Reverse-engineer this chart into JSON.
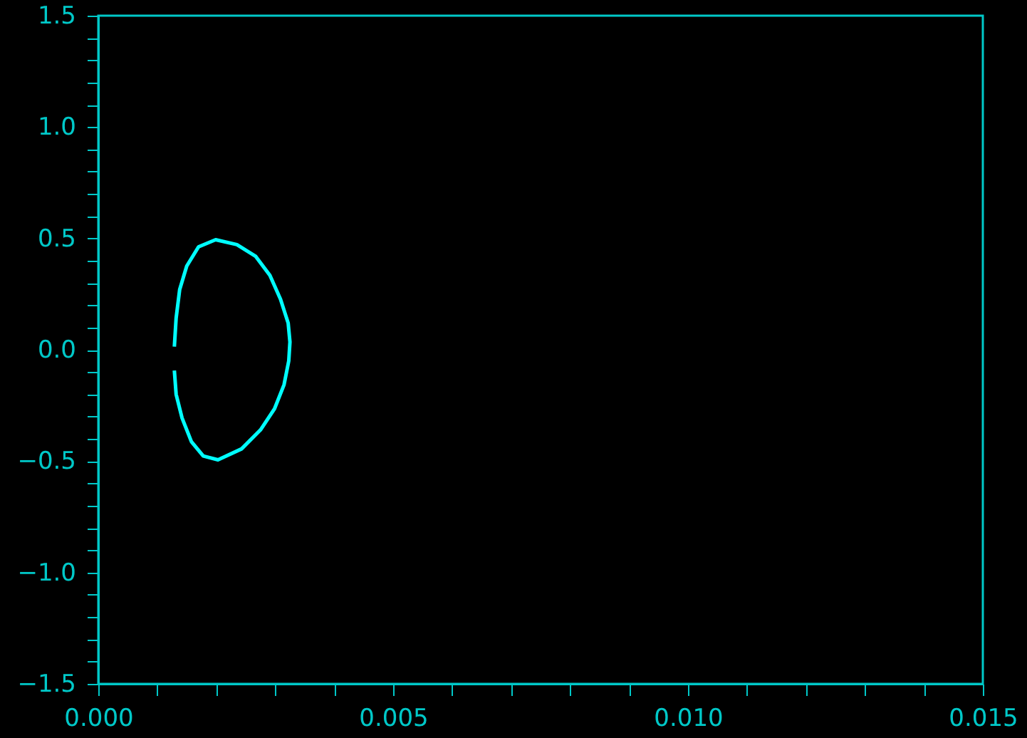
{
  "chart_data": {
    "type": "line",
    "x": [
      0.00129,
      0.00132,
      0.00138,
      0.0015,
      0.0017,
      0.00199,
      0.00235,
      0.00267,
      0.00291,
      0.00309,
      0.00322,
      0.00325,
      0.00323,
      0.00315,
      0.00299,
      0.00275,
      0.00243,
      0.00203,
      0.00178,
      0.00158,
      0.00142,
      0.00132,
      0.00129
    ],
    "series": [
      {
        "color": "#00ffff",
        "values": [
          0.014,
          0.142,
          0.27,
          0.376,
          0.462,
          0.494,
          0.472,
          0.419,
          0.334,
          0.227,
          0.12,
          0.035,
          -0.05,
          -0.157,
          -0.264,
          -0.36,
          -0.445,
          -0.494,
          -0.477,
          -0.413,
          -0.306,
          -0.2,
          -0.093
        ]
      }
    ],
    "xlim": [
      0,
      0.015
    ],
    "xticks": [
      {
        "value": 0,
        "label": "0.000"
      },
      {
        "value": 0.001,
        "label": null
      },
      {
        "value": 0.002,
        "label": null
      },
      {
        "value": 0.003,
        "label": null
      },
      {
        "value": 0.004,
        "label": null
      },
      {
        "value": 0.005,
        "label": "0.005"
      },
      {
        "value": 0.006,
        "label": null
      },
      {
        "value": 0.007,
        "label": null
      },
      {
        "value": 0.008,
        "label": null
      },
      {
        "value": 0.009,
        "label": null
      },
      {
        "value": 0.01,
        "label": "0.010"
      },
      {
        "value": 0.011,
        "label": null
      },
      {
        "value": 0.012,
        "label": null
      },
      {
        "value": 0.013,
        "label": null
      },
      {
        "value": 0.014,
        "label": null
      },
      {
        "value": 0.015,
        "label": "0.015"
      }
    ],
    "ylim": [
      -1.5,
      1.5
    ],
    "yticks": [
      {
        "value": -1.5,
        "label": "−1.5"
      },
      {
        "value": -1.4,
        "label": null
      },
      {
        "value": -1.3,
        "label": null
      },
      {
        "value": -1.2,
        "label": null
      },
      {
        "value": -1.1,
        "label": null
      },
      {
        "value": -1.0,
        "label": "−1.0"
      },
      {
        "value": -0.9,
        "label": null
      },
      {
        "value": -0.8,
        "label": null
      },
      {
        "value": -0.7,
        "label": null
      },
      {
        "value": -0.6,
        "label": null
      },
      {
        "value": -0.5,
        "label": "−0.5"
      },
      {
        "value": -0.4,
        "label": null
      },
      {
        "value": -0.3,
        "label": null
      },
      {
        "value": -0.2,
        "label": null
      },
      {
        "value": -0.1,
        "label": null
      },
      {
        "value": 0,
        "label": "0.0"
      },
      {
        "value": 0.1,
        "label": null
      },
      {
        "value": 0.2,
        "label": null
      },
      {
        "value": 0.3,
        "label": null
      },
      {
        "value": 0.4,
        "label": null
      },
      {
        "value": 0.5,
        "label": "0.5"
      },
      {
        "value": 0.6,
        "label": null
      },
      {
        "value": 0.7,
        "label": null
      },
      {
        "value": 0.8,
        "label": null
      },
      {
        "value": 0.9,
        "label": null
      },
      {
        "value": 1.0,
        "label": "1.0"
      },
      {
        "value": 1.1,
        "label": null
      },
      {
        "value": 1.2,
        "label": null
      },
      {
        "value": 1.3,
        "label": null
      },
      {
        "value": 1.4,
        "label": null
      },
      {
        "value": 1.5,
        "label": "1.5"
      }
    ],
    "grid": false,
    "marker": "none",
    "line_style": "solid"
  }
}
